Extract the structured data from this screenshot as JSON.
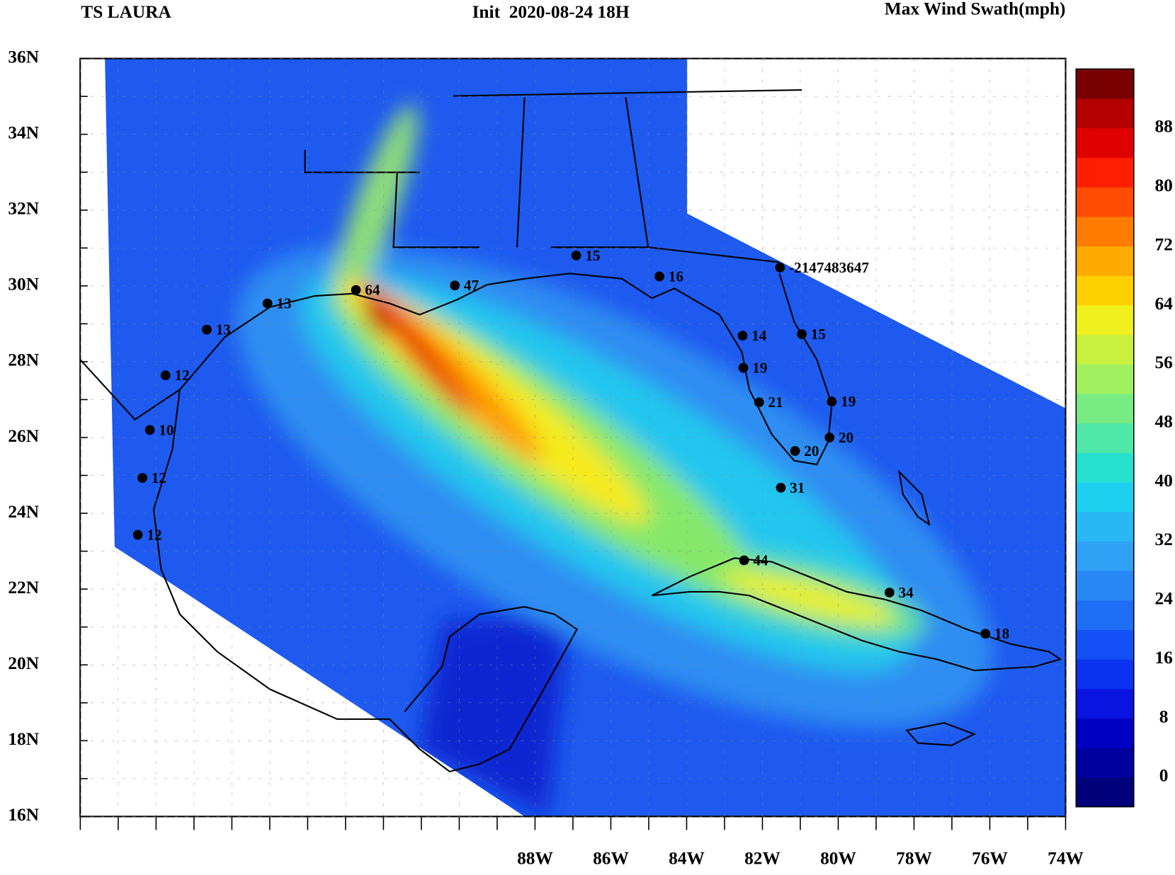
{
  "header": {
    "title": "TS LAURA",
    "init": "Init  2020-08-24 18H",
    "product": "Max Wind Swath(mph)"
  },
  "axes": {
    "lat_labels": [
      "36N",
      "34N",
      "32N",
      "30N",
      "28N",
      "26N",
      "24N",
      "22N",
      "20N",
      "18N",
      "16N"
    ],
    "lon_labels": [
      "88W",
      "86W",
      "84W",
      "82W",
      "80W",
      "78W",
      "76W",
      "74W"
    ]
  },
  "colorbar": {
    "labels": [
      "0",
      "8",
      "16",
      "24",
      "32",
      "40",
      "48",
      "56",
      "64",
      "72",
      "80",
      "88"
    ]
  },
  "stations": [
    {
      "label": "15"
    },
    {
      "label": "16"
    },
    {
      "label": "-2147483647"
    },
    {
      "label": "47"
    },
    {
      "label": "64"
    },
    {
      "label": "13"
    },
    {
      "label": "13"
    },
    {
      "label": "12"
    },
    {
      "label": "10"
    },
    {
      "label": "12"
    },
    {
      "label": "12"
    },
    {
      "label": "14"
    },
    {
      "label": "15"
    },
    {
      "label": "19"
    },
    {
      "label": "21"
    },
    {
      "label": "19"
    },
    {
      "label": "20"
    },
    {
      "label": "20"
    },
    {
      "label": "31"
    },
    {
      "label": "44"
    },
    {
      "label": "34"
    },
    {
      "label": "18"
    }
  ]
}
